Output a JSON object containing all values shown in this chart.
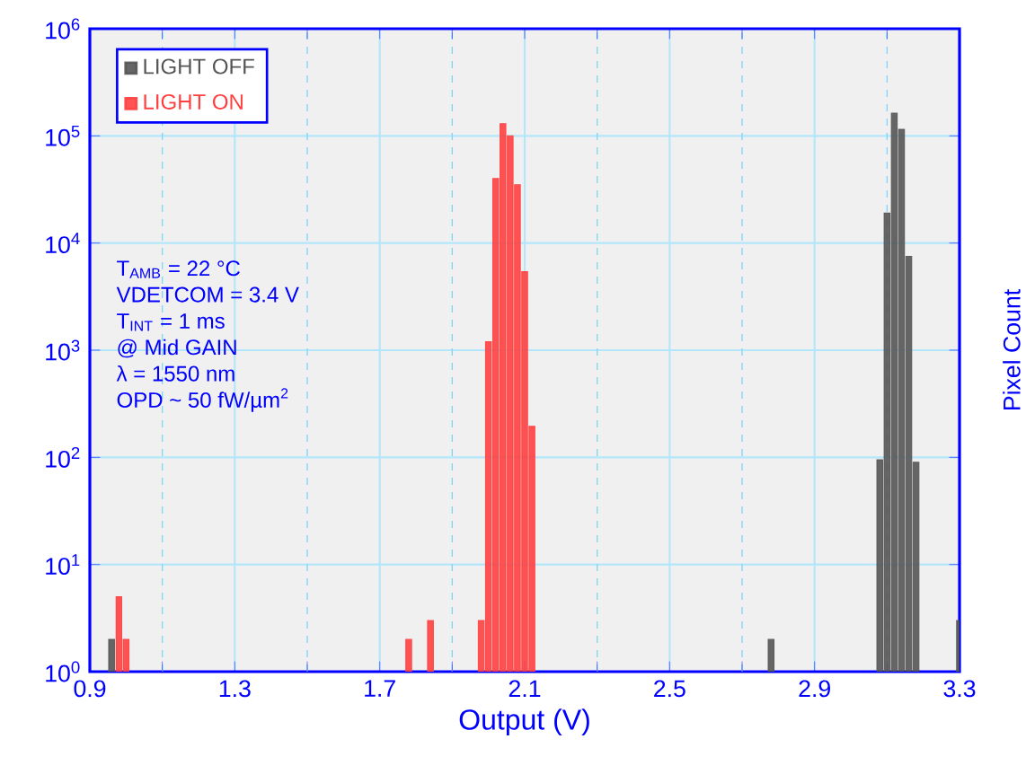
{
  "chart_data": {
    "type": "bar",
    "xlabel": "Output (V)",
    "ylabel": "Pixel Count",
    "series": [
      {
        "name": "LIGHT OFF",
        "color": "#555555",
        "x": [
          0.96,
          2.78,
          3.08,
          3.1,
          3.12,
          3.14,
          3.16,
          3.18,
          3.3
        ],
        "values": [
          2,
          2,
          95,
          19000,
          163000,
          115000,
          7500,
          90,
          3
        ]
      },
      {
        "name": "LIGHT ON",
        "color": "#ff4040",
        "x": [
          0.98,
          1.0,
          1.78,
          1.84,
          1.98,
          2.0,
          2.02,
          2.04,
          2.06,
          2.08,
          2.1,
          2.12
        ],
        "values": [
          5,
          2,
          2,
          3,
          3,
          1200,
          40000,
          130000,
          100000,
          35000,
          5400,
          195
        ]
      }
    ],
    "xlim": [
      0.9,
      3.3
    ],
    "xticks": [
      0.9,
      {
        "value": 1.1,
        "label": null
      },
      1.3,
      {
        "value": 1.5,
        "label": null
      },
      1.7,
      {
        "value": 1.9,
        "label": null
      },
      2.1,
      {
        "value": 2.3,
        "label": null
      },
      2.5,
      {
        "value": 2.7,
        "label": null
      },
      2.9,
      {
        "value": 3.1,
        "label": null
      },
      3.3
    ],
    "ylim": [
      1,
      1000000
    ],
    "log": "y",
    "yticks": [
      {
        "value": 1,
        "label": "10$^{0}$"
      },
      {
        "value": 10,
        "label": "10$^{1}$"
      },
      {
        "value": 100,
        "label": "10$^{2}$"
      },
      {
        "value": 1000,
        "label": "10$^{3}$"
      },
      {
        "value": 10000,
        "label": "10$^{4}$"
      },
      {
        "value": 100000,
        "label": "10$^{5}$"
      },
      {
        "value": 1000000,
        "label": "10$^{6}$"
      }
    ],
    "grid": true,
    "legend": "top left",
    "annotations": [
      "T$_{AMB}$ = 22 °C",
      "VDETCOM = 3.4 V",
      "T$_{INT}$ = 1 ms",
      "@ Mid GAIN",
      "λ = 1550 nm",
      "OPD ~ 50 fW/µm$^{2}$"
    ]
  }
}
